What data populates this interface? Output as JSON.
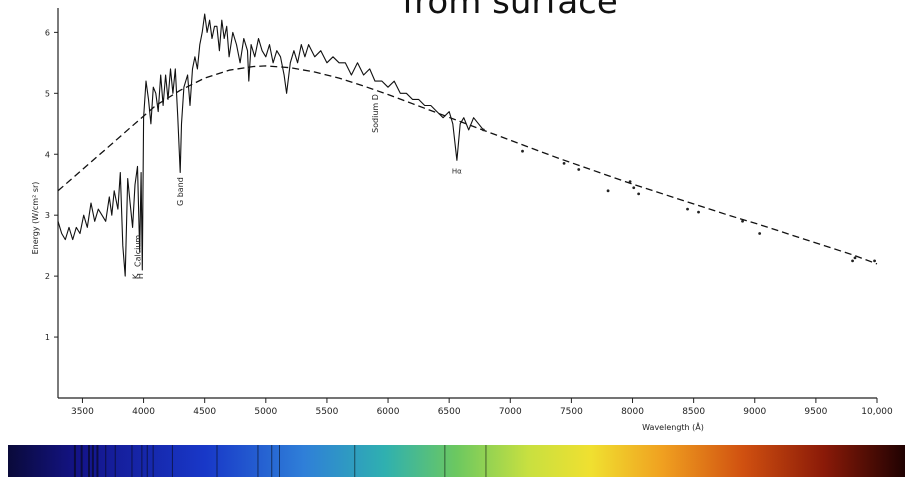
{
  "title": "from surface",
  "chart_data": {
    "type": "line",
    "xlabel": "Wavelength (Å)",
    "ylabel": "Energy (W/cm² sr)",
    "xlim": [
      3300,
      10000
    ],
    "ylim": [
      0,
      6.4
    ],
    "xticks": [
      3500,
      4000,
      4500,
      5000,
      5500,
      6000,
      6500,
      7000,
      7500,
      8000,
      8500,
      9000,
      9500,
      10000
    ],
    "xtick_labels": [
      "3500",
      "4000",
      "4500",
      "5000",
      "5500",
      "6000",
      "6500",
      "7000",
      "7500",
      "8000",
      "8500",
      "9000",
      "9500",
      "10,000"
    ],
    "yticks": [
      1,
      2,
      3,
      4,
      5,
      6
    ],
    "ytick_labels": [
      "1",
      "2",
      "3",
      "4",
      "5",
      "6"
    ],
    "grid": false,
    "series": [
      {
        "style": "solid",
        "x": [
          3300,
          3330,
          3360,
          3390,
          3420,
          3450,
          3480,
          3510,
          3540,
          3570,
          3600,
          3630,
          3660,
          3690,
          3720,
          3740,
          3760,
          3790,
          3810,
          3830,
          3850,
          3870,
          3890,
          3910,
          3930,
          3950,
          3968,
          3980,
          3990,
          4000,
          4020,
          4040,
          4060,
          4080,
          4100,
          4120,
          4140,
          4160,
          4180,
          4200,
          4220,
          4240,
          4260,
          4280,
          4300,
          4310,
          4330,
          4360,
          4380,
          4400,
          4420,
          4440,
          4460,
          4480,
          4500,
          4520,
          4540,
          4560,
          4580,
          4600,
          4620,
          4640,
          4660,
          4680,
          4700,
          4730,
          4760,
          4790,
          4820,
          4850,
          4861,
          4880,
          4910,
          4940,
          4970,
          5000,
          5030,
          5060,
          5090,
          5120,
          5150,
          5170,
          5200,
          5230,
          5260,
          5290,
          5320,
          5350,
          5400,
          5450,
          5500,
          5550,
          5600,
          5650,
          5700,
          5750,
          5800,
          5850,
          5893,
          5950,
          6000,
          6050,
          6100,
          6150,
          6200,
          6250,
          6300,
          6350,
          6400,
          6450,
          6500,
          6530,
          6563,
          6590,
          6620,
          6660,
          6700,
          6740,
          6780
        ],
        "y": [
          2.9,
          2.7,
          2.6,
          2.8,
          2.6,
          2.8,
          2.7,
          3.0,
          2.8,
          3.2,
          2.9,
          3.1,
          3.0,
          2.9,
          3.3,
          3.0,
          3.4,
          3.1,
          3.7,
          2.5,
          2.0,
          3.6,
          3.2,
          2.8,
          3.5,
          3.8,
          2.4,
          3.7,
          2.1,
          4.6,
          5.2,
          4.9,
          4.5,
          5.1,
          5.0,
          4.7,
          5.3,
          4.8,
          5.3,
          4.9,
          5.4,
          5.0,
          5.4,
          4.6,
          3.7,
          4.5,
          5.1,
          5.3,
          4.8,
          5.4,
          5.6,
          5.4,
          5.8,
          6.0,
          6.3,
          6.0,
          6.2,
          5.9,
          6.1,
          6.1,
          5.7,
          6.2,
          5.9,
          6.1,
          5.6,
          6.0,
          5.8,
          5.5,
          5.9,
          5.7,
          5.2,
          5.8,
          5.6,
          5.9,
          5.7,
          5.6,
          5.8,
          5.5,
          5.7,
          5.6,
          5.3,
          5.0,
          5.5,
          5.7,
          5.5,
          5.8,
          5.6,
          5.8,
          5.6,
          5.7,
          5.5,
          5.6,
          5.5,
          5.5,
          5.3,
          5.5,
          5.3,
          5.4,
          5.2,
          5.2,
          5.1,
          5.2,
          5.0,
          5.0,
          4.9,
          4.9,
          4.8,
          4.8,
          4.7,
          4.6,
          4.7,
          4.5,
          3.9,
          4.5,
          4.6,
          4.4,
          4.6,
          4.5,
          4.4
        ]
      },
      {
        "style": "dashed",
        "x": [
          3300,
          3500,
          3700,
          3900,
          4100,
          4300,
          4500,
          4700,
          4900,
          5000,
          5200,
          5400,
          5600,
          5800,
          6000,
          6200,
          6400,
          6600,
          6800,
          7000,
          7200,
          7400,
          7600,
          7800,
          8000,
          8200,
          8400,
          8600,
          8800,
          9000,
          9200,
          9400,
          9600,
          9800,
          10000
        ],
        "y": [
          3.4,
          3.75,
          4.1,
          4.45,
          4.8,
          5.05,
          5.25,
          5.38,
          5.44,
          5.45,
          5.42,
          5.35,
          5.25,
          5.12,
          4.98,
          4.83,
          4.68,
          4.53,
          4.38,
          4.23,
          4.08,
          3.93,
          3.79,
          3.65,
          3.51,
          3.38,
          3.25,
          3.12,
          2.99,
          2.87,
          2.74,
          2.61,
          2.48,
          2.35,
          2.2
        ]
      },
      {
        "style": "points",
        "x": [
          6780,
          7100,
          7440,
          7560,
          7800,
          7980,
          8010,
          8050,
          8450,
          8540,
          8900,
          9040,
          9800,
          9820,
          9980
        ],
        "y": [
          4.4,
          4.05,
          3.85,
          3.75,
          3.4,
          3.55,
          3.45,
          3.35,
          3.1,
          3.05,
          2.9,
          2.7,
          2.25,
          2.3,
          2.25
        ]
      }
    ],
    "annotations": [
      {
        "text": "Calcium",
        "x": 3950,
        "y": 2.15
      },
      {
        "text": "K",
        "x": 3935,
        "y": 1.95
      },
      {
        "text": "H",
        "x": 3970,
        "y": 1.95
      },
      {
        "text": "G band",
        "x": 4300,
        "y": 3.15
      },
      {
        "text": "Sodium D",
        "x": 5893,
        "y": 4.35
      },
      {
        "text": "Hα",
        "x": 6563,
        "y": 3.75
      }
    ]
  }
}
